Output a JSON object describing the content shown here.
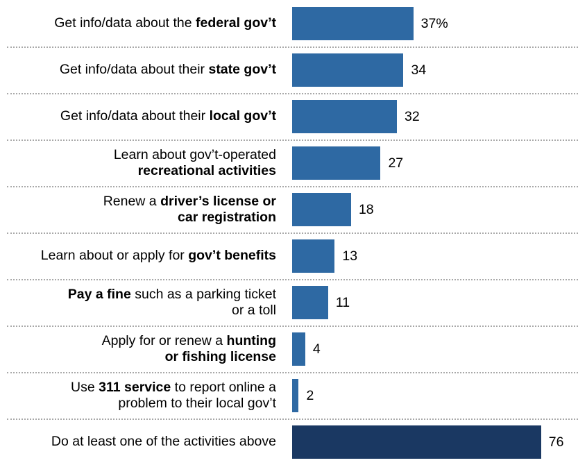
{
  "colors": {
    "bar": "#2e69a3",
    "bar_total": "#1a3862",
    "divider": "#a8a8a8"
  },
  "chart_data": {
    "type": "bar",
    "orientation": "horizontal",
    "xlim": [
      0,
      100
    ],
    "grid": false,
    "categories": [
      [
        {
          "t": "Get info/data about the ",
          "b": false
        },
        {
          "t": "federal gov’t",
          "b": true
        }
      ],
      [
        {
          "t": "Get info/data about their ",
          "b": false
        },
        {
          "t": "state gov’t",
          "b": true
        }
      ],
      [
        {
          "t": "Get info/data about their ",
          "b": false
        },
        {
          "t": "local gov’t",
          "b": true
        }
      ],
      [
        {
          "t": "Learn about gov’t-operated",
          "b": false
        },
        {
          "t": "\n",
          "b": false
        },
        {
          "t": "recreational activities",
          "b": true
        }
      ],
      [
        {
          "t": "Renew a ",
          "b": false
        },
        {
          "t": "driver’s license or",
          "b": true
        },
        {
          "t": "\n",
          "b": false
        },
        {
          "t": "car registration",
          "b": true
        }
      ],
      [
        {
          "t": "Learn about or apply for ",
          "b": false
        },
        {
          "t": "gov’t benefits",
          "b": true
        }
      ],
      [
        {
          "t": "Pay a fine",
          "b": true
        },
        {
          "t": " such as a parking ticket",
          "b": false
        },
        {
          "t": "\n",
          "b": false
        },
        {
          "t": "or a toll",
          "b": false
        }
      ],
      [
        {
          "t": "Apply for or renew a ",
          "b": false
        },
        {
          "t": "hunting",
          "b": true
        },
        {
          "t": "\n",
          "b": false
        },
        {
          "t": "or fishing license",
          "b": true
        }
      ],
      [
        {
          "t": "Use ",
          "b": false
        },
        {
          "t": "311 service",
          "b": true
        },
        {
          "t": " to report online a",
          "b": false
        },
        {
          "t": "\n",
          "b": false
        },
        {
          "t": "problem to their local gov’t",
          "b": false
        }
      ],
      [
        {
          "t": "Do at least one of the activities above",
          "b": false
        }
      ]
    ],
    "values": [
      37,
      34,
      32,
      27,
      18,
      13,
      11,
      4,
      2,
      76
    ],
    "value_labels": [
      "37%",
      "34",
      "32",
      "27",
      "18",
      "13",
      "11",
      "4",
      "2",
      "76"
    ],
    "highlight_last": true
  }
}
